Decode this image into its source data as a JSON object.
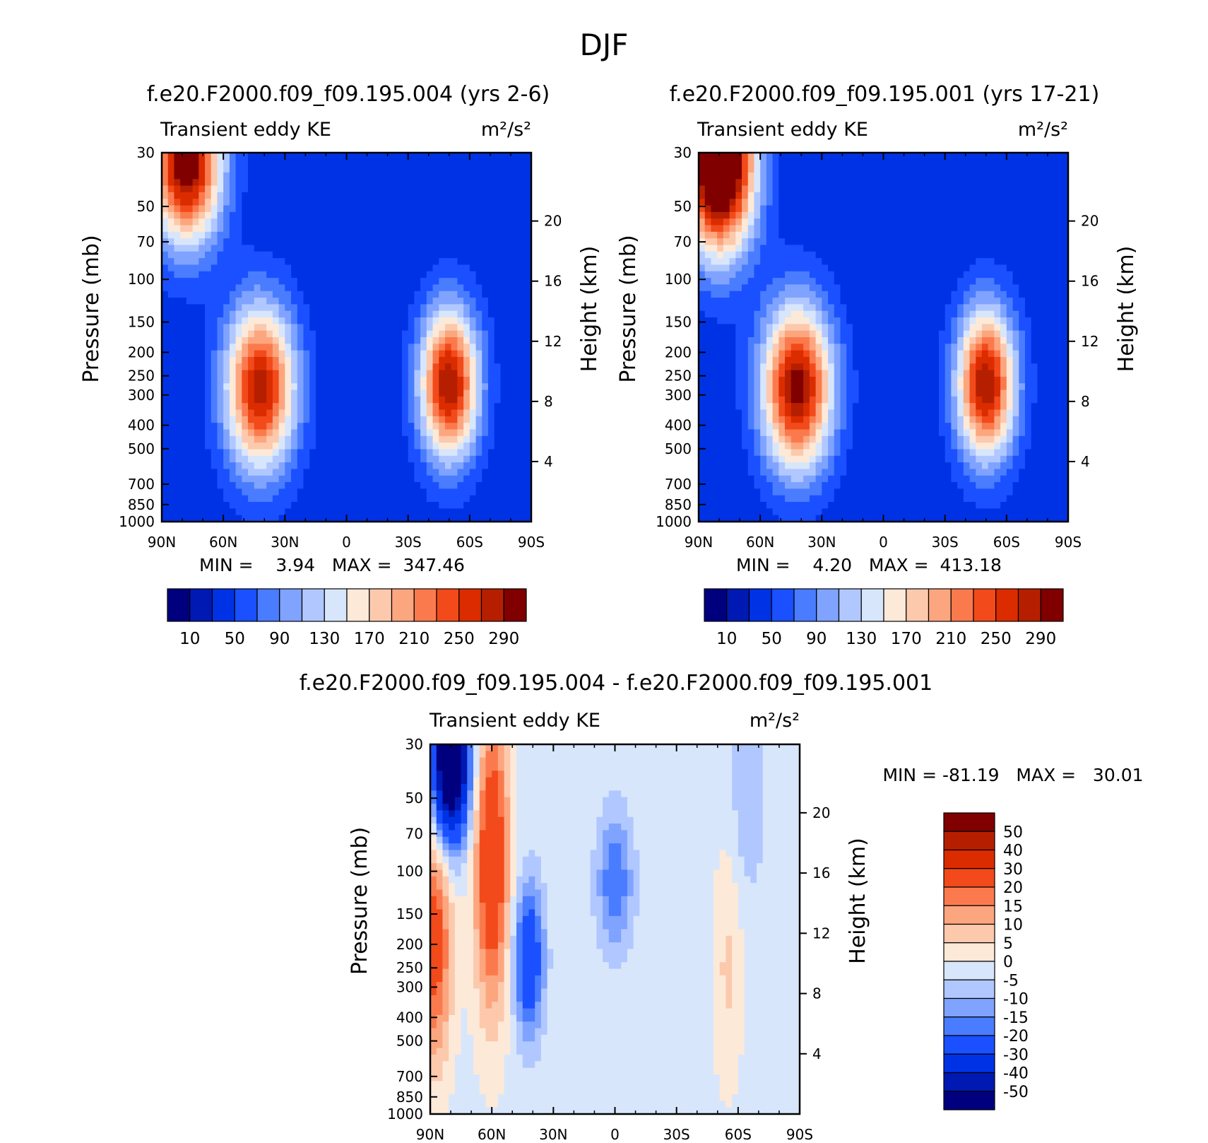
{
  "figure": {
    "title": "DJF"
  },
  "colors": {
    "level_colors_abs": [
      "#00007f",
      "#0019b2",
      "#0032e5",
      "#1a50ff",
      "#4a7cff",
      "#7fa3ff",
      "#b0c8ff",
      "#d8e6fb",
      "#fde9d8",
      "#fcc9ad",
      "#fca67f",
      "#fb7a4d",
      "#f24a1a",
      "#db2c00",
      "#b51f00",
      "#800000"
    ],
    "level_colors_diff": [
      "#00007f",
      "#0019b2",
      "#0032e5",
      "#1a50ff",
      "#4a7cff",
      "#7fa3ff",
      "#b0c8ff",
      "#d8e6fb",
      "#fde9d8",
      "#fcc9ad",
      "#fca67f",
      "#fb7a4d",
      "#f24a1a",
      "#db2c00",
      "#b51f00",
      "#800000"
    ]
  },
  "panels": [
    {
      "title": "f.e20.F2000.f09_f09.195.004 (yrs 2-6)",
      "left_label": "Transient eddy KE",
      "right_label": "m²/s²",
      "stats": "MIN =    3.94   MAX =  347.46"
    },
    {
      "title": "f.e20.F2000.f09_f09.195.001 (yrs 17-21)",
      "left_label": "Transient eddy KE",
      "right_label": "m²/s²",
      "stats": "MIN =    4.20   MAX =  413.18"
    },
    {
      "title": "f.e20.F2000.f09_f09.195.004 - f.e20.F2000.f09_f09.195.001",
      "left_label": "Transient eddy KE",
      "right_label": "m²/s²",
      "stats": "MIN = -81.19   MAX =   30.01"
    }
  ],
  "axes": {
    "ylabel": "Pressure (mb)",
    "y2label": "Height (km)",
    "pressure_ticks": [
      "30",
      "50",
      "70",
      "100",
      "150",
      "200",
      "250",
      "300",
      "400",
      "500",
      "700",
      "850",
      "1000"
    ],
    "height_ticks": [
      "20",
      "16",
      "12",
      "8",
      "4"
    ],
    "lat_ticks": [
      "90N",
      "60N",
      "30N",
      "0",
      "30S",
      "60S",
      "90S"
    ]
  },
  "colorbars": {
    "abs_labels": [
      "10",
      "50",
      "90",
      "130",
      "170",
      "210",
      "250",
      "290"
    ],
    "diff_labels": [
      "50",
      "40",
      "30",
      "20",
      "15",
      "10",
      "5",
      "0",
      "-5",
      "-10",
      "-15",
      "-20",
      "-30",
      "-40",
      "-50"
    ]
  },
  "chart_data": [
    {
      "type": "heatmap",
      "title": "f.e20.F2000.f09_f09.195.004 (yrs 2-6)",
      "variable": "Transient eddy KE",
      "units": "m²/s²",
      "x": "latitude (90N to 90S)",
      "y": "pressure (mb), log scale, 30 to 1000",
      "levels": [
        10,
        30,
        50,
        70,
        90,
        110,
        130,
        150,
        170,
        190,
        210,
        230,
        250,
        270,
        290
      ],
      "min": 3.94,
      "max": 347.46,
      "features": [
        {
          "lat": 78,
          "p": 32,
          "value": 320,
          "sx": 12,
          "sy": 0.55
        },
        {
          "lat": 42,
          "p": 280,
          "value": 280,
          "sx": 12,
          "sy": 0.55
        },
        {
          "lat": -50,
          "p": 270,
          "value": 290,
          "sx": 10,
          "sy": 0.5
        }
      ]
    },
    {
      "type": "heatmap",
      "title": "f.e20.F2000.f09_f09.195.001 (yrs 17-21)",
      "variable": "Transient eddy KE",
      "units": "m²/s²",
      "x": "latitude (90N to 90S)",
      "y": "pressure (mb), log scale, 30 to 1000",
      "levels": [
        10,
        30,
        50,
        70,
        90,
        110,
        130,
        150,
        170,
        190,
        210,
        230,
        250,
        270,
        290
      ],
      "min": 4.2,
      "max": 413.18,
      "features": [
        {
          "lat": 80,
          "p": 32,
          "value": 400,
          "sx": 12,
          "sy": 0.6
        },
        {
          "lat": 42,
          "p": 280,
          "value": 300,
          "sx": 12,
          "sy": 0.55
        },
        {
          "lat": -50,
          "p": 270,
          "value": 290,
          "sx": 10,
          "sy": 0.5
        }
      ]
    },
    {
      "type": "heatmap",
      "title": "f.e20.F2000.f09_f09.195.004 - f.e20.F2000.f09_f09.195.001",
      "variable": "Transient eddy KE",
      "units": "m²/s²",
      "x": "latitude (90N to 90S)",
      "y": "pressure (mb), log scale, 30 to 1000",
      "levels": [
        -50,
        -40,
        -30,
        -20,
        -15,
        -10,
        -5,
        0,
        5,
        10,
        15,
        20,
        30,
        40,
        50
      ],
      "min": -81.19,
      "max": 30.01,
      "features": [
        {
          "lat": 80,
          "p": 35,
          "value": -80,
          "sx": 6,
          "sy": 0.5
        },
        {
          "lat": 60,
          "p": 90,
          "value": 30,
          "sx": 6,
          "sy": 1.0
        },
        {
          "lat": 88,
          "p": 200,
          "value": 25,
          "sx": 6,
          "sy": 0.8
        },
        {
          "lat": 42,
          "p": 230,
          "value": -30,
          "sx": 5,
          "sy": 0.5
        },
        {
          "lat": 0,
          "p": 110,
          "value": -20,
          "sx": 6,
          "sy": 0.45
        },
        {
          "lat": -55,
          "p": 250,
          "value": 6,
          "sx": 5,
          "sy": 0.8
        },
        {
          "lat": -65,
          "p": 45,
          "value": -10,
          "sx": 6,
          "sy": 0.7
        }
      ]
    }
  ]
}
